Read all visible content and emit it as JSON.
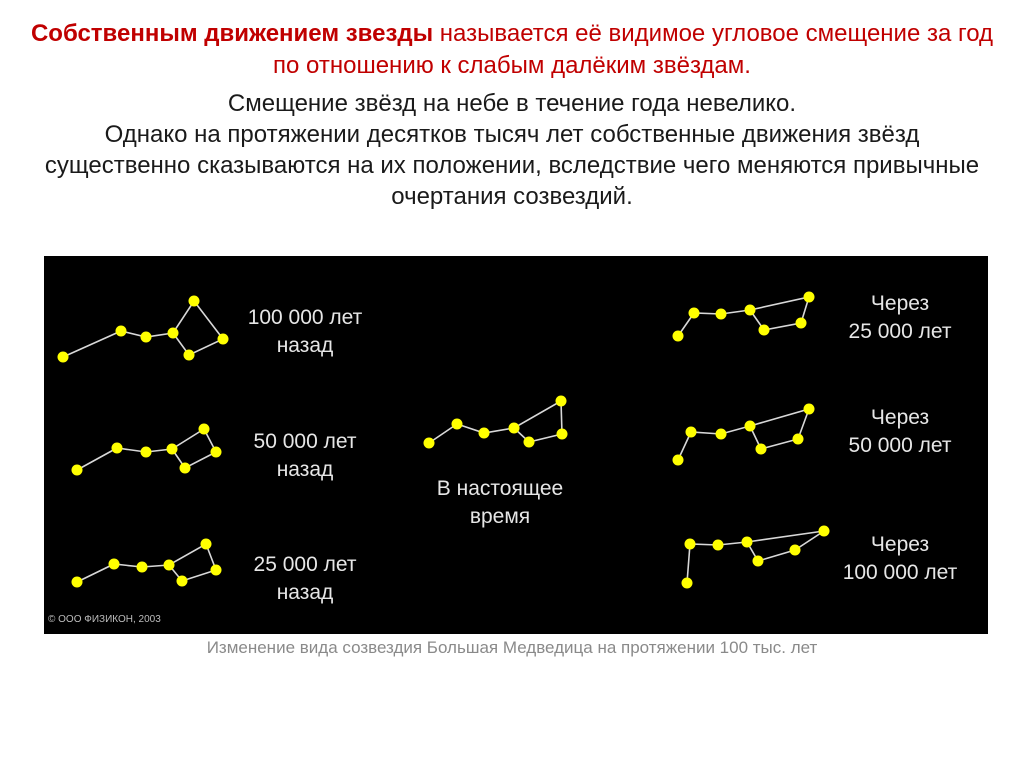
{
  "definition": {
    "bold": "Собственным движением звезды",
    "rest": " называется её видимое угловое смещение за год по отношению к слабым далёким звёздам."
  },
  "paragraphs": [
    "Смещение звёзд на небе в течение года невелико.",
    "Однако на протяжении десятков тысяч лет собственные движения звёзд существенно сказываются на их положении, вследствие чего меняются привычные очертания созвездий."
  ],
  "figure": {
    "labels": {
      "past100": "100 000 лет\nназад",
      "past50": "50 000 лет\nназад",
      "past25": "25 000 лет\nназад",
      "now": "В настоящее\nвремя",
      "future25": "Через\n25 000 лет",
      "future50": "Через\n50 000 лет",
      "future100": "Через\n100 000 лет"
    },
    "copyright": "© ООО ФИЗИКОН, 2003",
    "star_color": "#ffff00",
    "line_color": "#d8d8d8",
    "background": "#000000"
  },
  "caption": "Изменение  вида созвездия Большая Медведица на протяжении  100 тыс. лет"
}
